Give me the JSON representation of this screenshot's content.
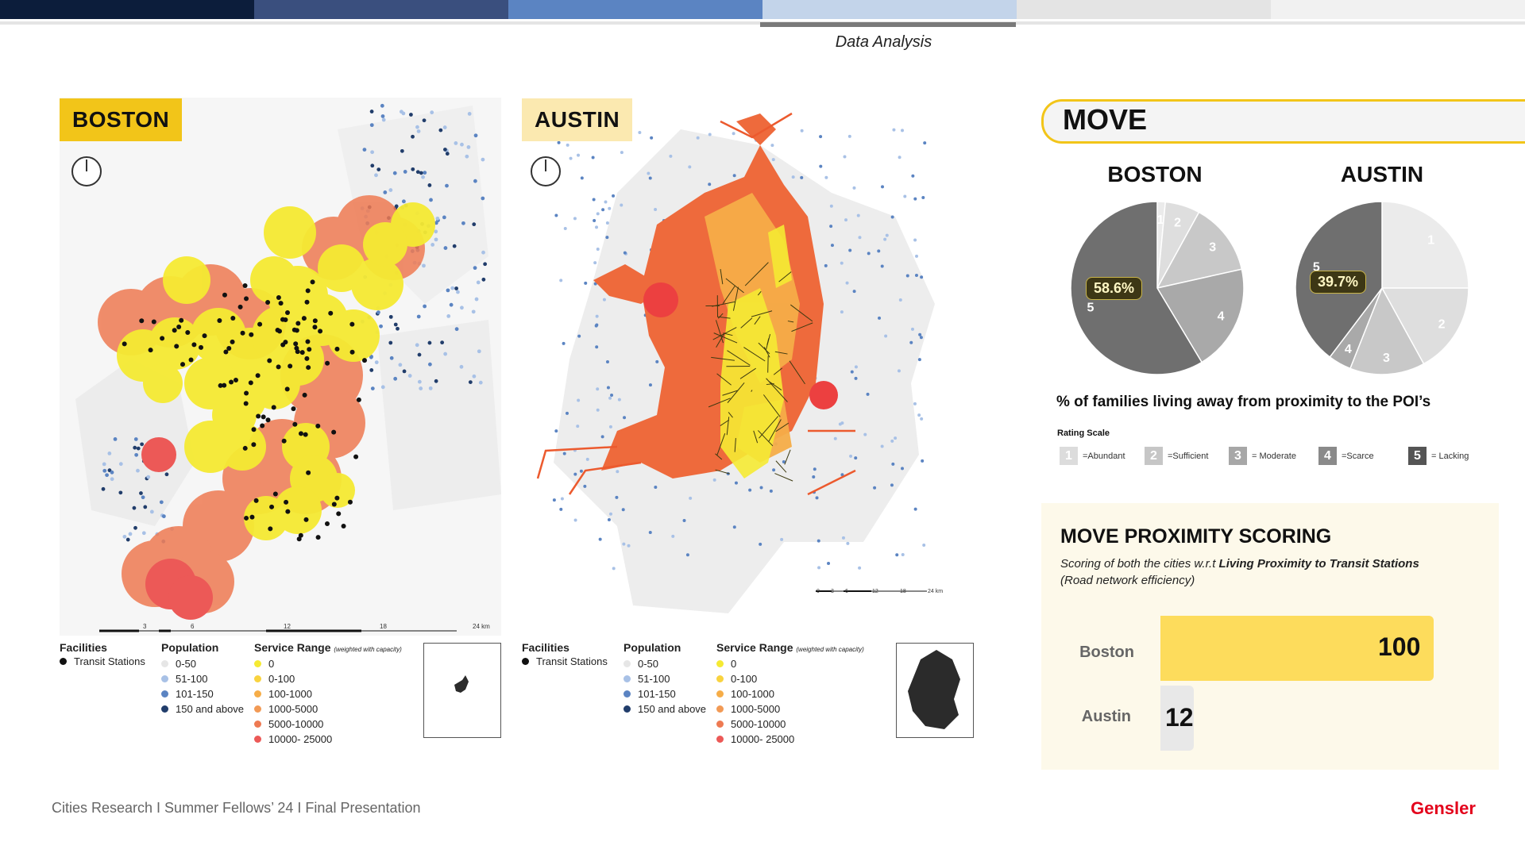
{
  "header": {
    "section_label": "Data Analysis",
    "progress_colors": [
      "#0c1d3b",
      "#3a4f7e",
      "#5b84c2",
      "#c3d4ea",
      "#e4e4e4",
      "#f1f1f1"
    ],
    "active_segment": 4
  },
  "maps": [
    {
      "city": "BOSTON",
      "tag_color": "#f2c519",
      "legend": {
        "facilities_title": "Facilities",
        "facility": "Transit Stations",
        "population_title": "Population",
        "population": [
          "0-50",
          "51-100",
          "101-150",
          "150 and above"
        ],
        "service_title": "Service Range",
        "service_note": "(weighted with capacity)",
        "service": [
          "0",
          "0-100",
          "100-1000",
          "1000-5000",
          "5000-10000",
          "10000- 25000"
        ]
      },
      "scale_ticks": [
        "3",
        "6",
        "12",
        "18",
        "24 km"
      ]
    },
    {
      "city": "AUSTIN",
      "tag_color": "#fbe9b0",
      "legend": {
        "facilities_title": "Facilities",
        "facility": "Transit Stations",
        "population_title": "Population",
        "population": [
          "0-50",
          "51-100",
          "101-150",
          "150 and above"
        ],
        "service_title": "Service Range",
        "service_note": "(weighted with capacity)",
        "service": [
          "0",
          "0-100",
          "100-1000",
          "1000-5000",
          "5000-10000",
          "10000- 25000"
        ]
      },
      "scale_ticks": [
        "0",
        "3",
        "6",
        "12",
        "18",
        "24 km"
      ]
    }
  ],
  "colors": {
    "population": [
      "#e6e6e6",
      "#a8c1e6",
      "#5b84c2",
      "#213d6b"
    ],
    "service": [
      "#f5ea33",
      "#f9d33f",
      "#f6ad48",
      "#f29a55",
      "#ee7a52",
      "#ec5957"
    ],
    "rating": [
      "#dcdcdc",
      "#c6c6c6",
      "#a7a7a7",
      "#8a8a8a",
      "#555555"
    ]
  },
  "move": {
    "title": "MOVE",
    "pie_titles": [
      "BOSTON",
      "AUSTIN"
    ],
    "boston_pct": "58.6%",
    "austin_pct": "39.7%",
    "caption": "% of families living away from proximity to the POI’s",
    "rating_title": "Rating Scale",
    "rating_scale": [
      {
        "num": "1",
        "label": "=Abundant"
      },
      {
        "num": "2",
        "label": "=Sufficient"
      },
      {
        "num": "3",
        "label": "= Moderate"
      },
      {
        "num": "4",
        "label": "=Scarce"
      },
      {
        "num": "5",
        "label": "= Lacking"
      }
    ]
  },
  "chart_data": [
    {
      "type": "pie",
      "title": "BOSTON",
      "labels": [
        "1",
        "2",
        "3",
        "4",
        "5"
      ],
      "values": [
        1.5,
        6.5,
        13.5,
        19.9,
        58.6
      ],
      "colors": [
        "#ebebeb",
        "#dedede",
        "#c8c8c8",
        "#a9a9a9",
        "#6f6f6f"
      ]
    },
    {
      "type": "pie",
      "title": "AUSTIN",
      "labels": [
        "1",
        "2",
        "3",
        "4",
        "5"
      ],
      "values": [
        25.0,
        17.0,
        14.0,
        4.3,
        39.7
      ],
      "colors": [
        "#ebebeb",
        "#dedede",
        "#c8c8c8",
        "#a9a9a9",
        "#6f6f6f"
      ]
    },
    {
      "type": "bar",
      "title": "MOVE PROXIMITY SCORING",
      "categories": [
        "Boston",
        "Austin"
      ],
      "values": [
        100,
        12
      ],
      "xlim": [
        0,
        100
      ],
      "colors": [
        "#fddc5c",
        "#e8e8e8"
      ]
    }
  ],
  "scoring": {
    "title": "MOVE PROXIMITY SCORING",
    "subtitle_pre": "Scoring of both the cities w.r.t ",
    "subtitle_bold": "Living Proximity to Transit Stations",
    "subtitle_post": " (Road network efficiency)"
  },
  "footer": {
    "text": "Cities Research I Summer Fellows’ 24 I Final Presentation",
    "brand": "Gensler"
  }
}
